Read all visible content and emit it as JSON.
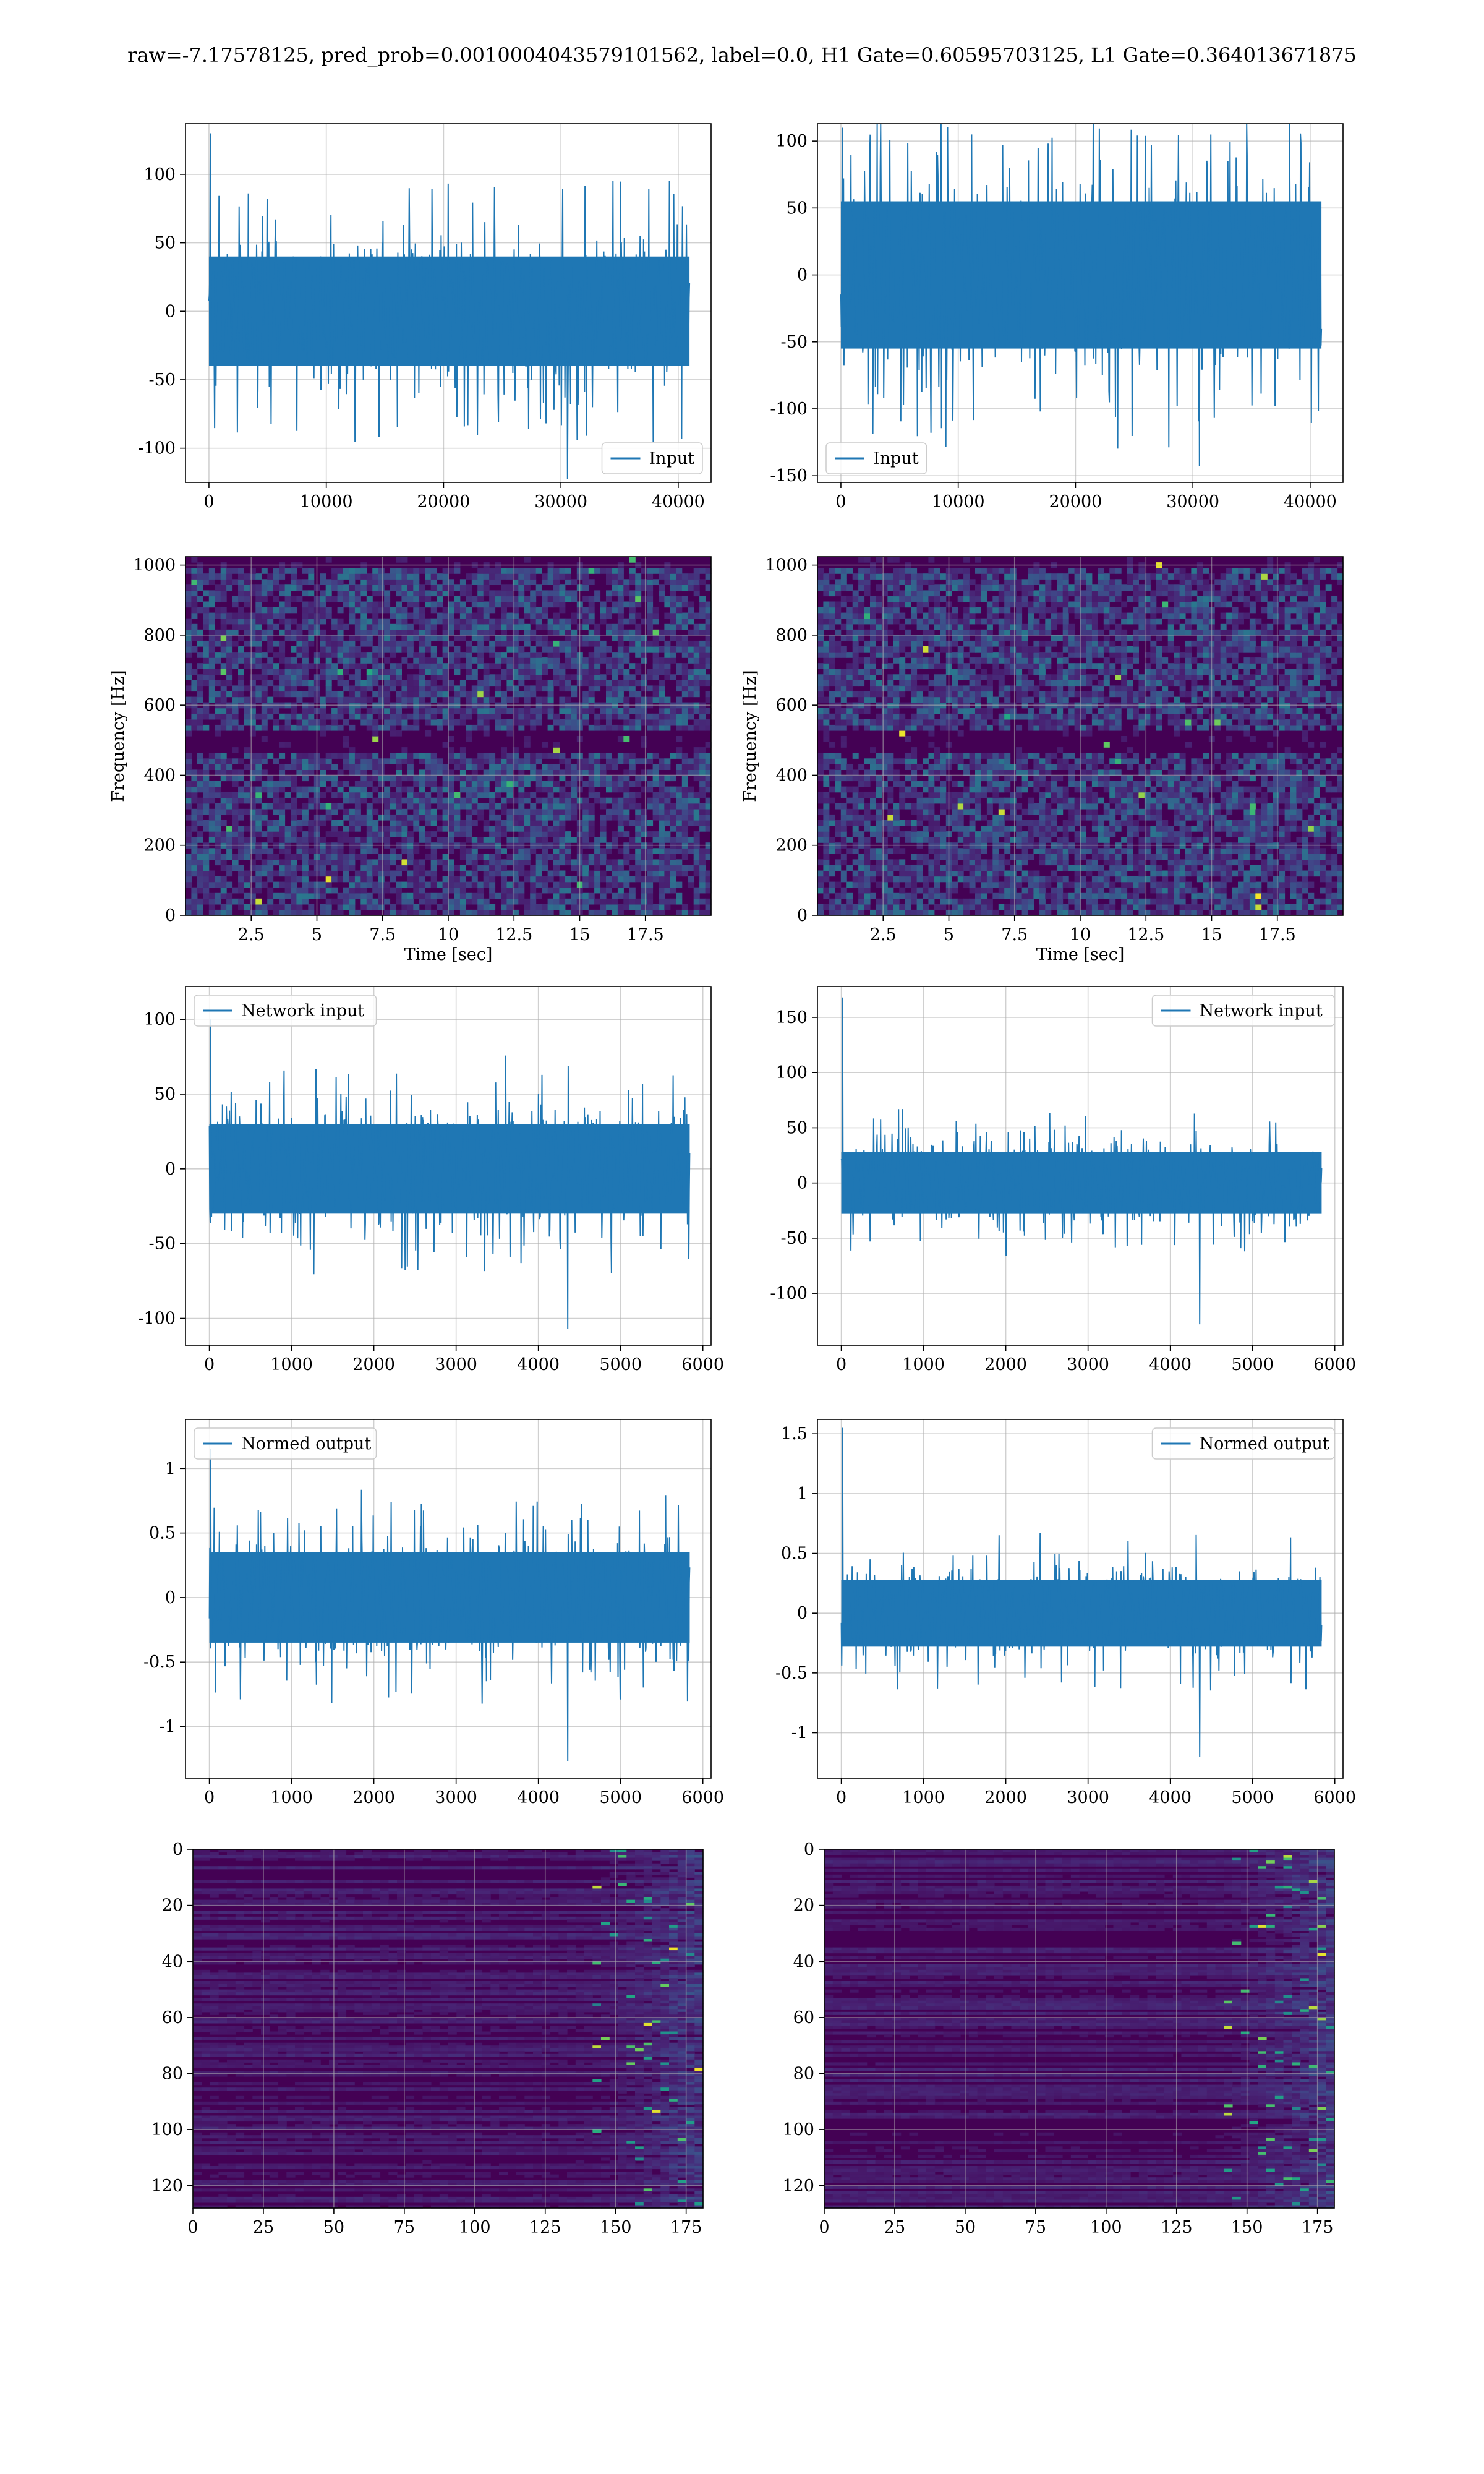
{
  "figure": {
    "suptitle": "raw=-7.17578125, pred_prob=0.0010004043579101562, label=0.0, H1 Gate=0.60595703125, L1 Gate=0.364013671875"
  },
  "colors": {
    "line": "#1f77b4",
    "grid": "#b0b0b0",
    "viridis_low": "#440154",
    "viridis_mid": "#21918c",
    "viridis_high": "#fde725"
  },
  "chart_data": [
    {
      "id": "h1_input",
      "type": "line",
      "legend": "Input",
      "legend_loc": "lower right",
      "xlim": [
        -2000,
        42800
      ],
      "ylim": [
        -125,
        137
      ],
      "xticks": [
        0,
        10000,
        20000,
        30000,
        40000
      ],
      "yticks": [
        -100,
        -50,
        0,
        50,
        100
      ],
      "x_range": [
        0,
        40960
      ],
      "envelope": 40,
      "spike_max": 130,
      "spike_min": -125,
      "grid": true
    },
    {
      "id": "l1_input",
      "type": "line",
      "legend": "Input",
      "legend_loc": "lower left",
      "xlim": [
        -2000,
        42800
      ],
      "ylim": [
        -155,
        113
      ],
      "xticks": [
        0,
        10000,
        20000,
        30000,
        40000
      ],
      "yticks": [
        -150,
        -100,
        -50,
        0,
        50,
        100
      ],
      "x_range": [
        0,
        40960
      ],
      "envelope": 55,
      "spike_max": 110,
      "spike_min": -143,
      "grid": true
    },
    {
      "id": "h1_spectrogram",
      "type": "heatmap",
      "xlim": [
        0,
        20
      ],
      "ylim": [
        0,
        1024
      ],
      "xticks": [
        2.5,
        5.0,
        7.5,
        10.0,
        12.5,
        15.0,
        17.5
      ],
      "yticks": [
        0,
        200,
        400,
        600,
        800,
        1000
      ],
      "xlabel": "Time [sec]",
      "ylabel": "Frequency [Hz]",
      "grid": true
    },
    {
      "id": "l1_spectrogram",
      "type": "heatmap",
      "xlim": [
        0,
        20
      ],
      "ylim": [
        0,
        1024
      ],
      "xticks": [
        2.5,
        5.0,
        7.5,
        10.0,
        12.5,
        15.0,
        17.5
      ],
      "yticks": [
        0,
        200,
        400,
        600,
        800,
        1000
      ],
      "xlabel": "Time [sec]",
      "ylabel": "Frequency [Hz]",
      "grid": true
    },
    {
      "id": "h1_network_input",
      "type": "line",
      "legend": "Network input",
      "legend_loc": "upper left",
      "xlim": [
        -290,
        6100
      ],
      "ylim": [
        -118,
        122
      ],
      "xticks": [
        0,
        1000,
        2000,
        3000,
        4000,
        5000,
        6000
      ],
      "yticks": [
        -100,
        -50,
        0,
        50,
        100
      ],
      "x_range": [
        0,
        5840
      ],
      "envelope": 30,
      "spike_max": 100,
      "spike_min": -107,
      "grid": true
    },
    {
      "id": "l1_network_input",
      "type": "line",
      "legend": "Network input",
      "legend_loc": "upper right",
      "xlim": [
        -290,
        6100
      ],
      "ylim": [
        -147,
        178
      ],
      "xticks": [
        0,
        1000,
        2000,
        3000,
        4000,
        5000,
        6000
      ],
      "yticks": [
        -100,
        -50,
        0,
        50,
        100,
        150
      ],
      "x_range": [
        0,
        5840
      ],
      "envelope": 28,
      "spike_max": 168,
      "spike_min": -128,
      "grid": true
    },
    {
      "id": "h1_normed_output",
      "type": "line",
      "legend": "Normed output",
      "legend_loc": "upper left",
      "xlim": [
        -290,
        6100
      ],
      "ylim": [
        -1.4,
        1.38
      ],
      "xticks": [
        0,
        1000,
        2000,
        3000,
        4000,
        5000,
        6000
      ],
      "yticks": [
        -1.0,
        -0.5,
        0.0,
        0.5,
        1.0
      ],
      "x_range": [
        0,
        5840
      ],
      "envelope": 0.35,
      "spike_max": 1.15,
      "spike_min": -1.27,
      "grid": true
    },
    {
      "id": "l1_normed_output",
      "type": "line",
      "legend": "Normed output",
      "legend_loc": "upper right",
      "xlim": [
        -290,
        6100
      ],
      "ylim": [
        -1.38,
        1.62
      ],
      "xticks": [
        0,
        1000,
        2000,
        3000,
        4000,
        5000,
        6000
      ],
      "yticks": [
        -1.0,
        -0.5,
        0.0,
        0.5,
        1.0,
        1.5
      ],
      "x_range": [
        0,
        5840
      ],
      "envelope": 0.28,
      "spike_max": 1.55,
      "spike_min": -1.2,
      "grid": true
    },
    {
      "id": "h1_features",
      "type": "heatmap",
      "invert_y": true,
      "xlim": [
        0,
        181
      ],
      "ylim": [
        0,
        128
      ],
      "xticks": [
        0,
        25,
        50,
        75,
        100,
        125,
        150,
        175
      ],
      "yticks": [
        0,
        20,
        40,
        60,
        80,
        100,
        120
      ],
      "grid": true
    },
    {
      "id": "l1_features",
      "type": "heatmap",
      "invert_y": true,
      "xlim": [
        0,
        181
      ],
      "ylim": [
        0,
        128
      ],
      "xticks": [
        0,
        25,
        50,
        75,
        100,
        125,
        150,
        175
      ],
      "yticks": [
        0,
        20,
        40,
        60,
        80,
        100,
        120
      ],
      "grid": true
    }
  ]
}
